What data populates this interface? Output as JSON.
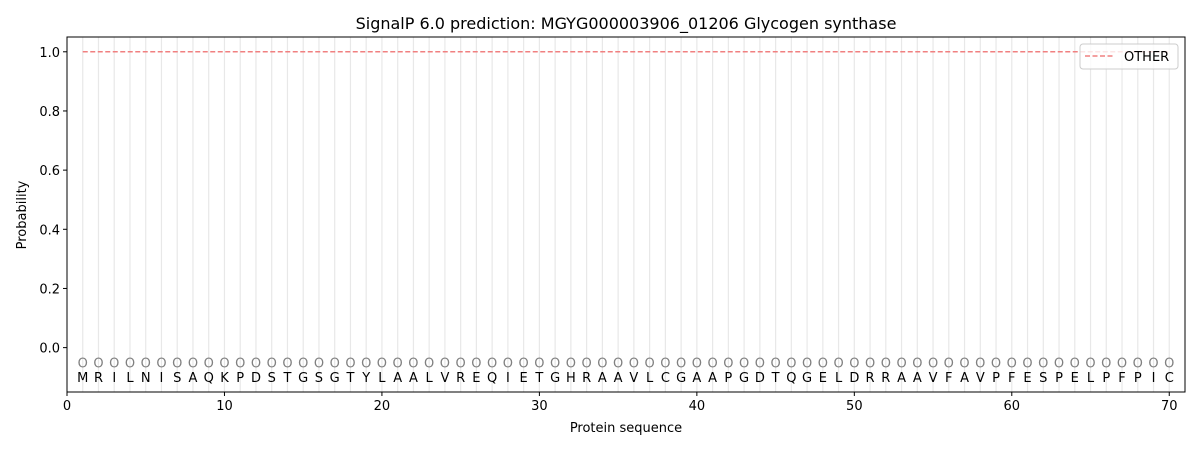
{
  "chart_data": {
    "type": "line",
    "title": "SignalP 6.0 prediction: MGYG000003906_01206 Glycogen synthase",
    "xlabel": "Protein sequence",
    "ylabel": "Probability",
    "xlim": [
      0,
      71
    ],
    "ylim": [
      -0.15,
      1.05
    ],
    "xticks": [
      0,
      10,
      20,
      30,
      40,
      50,
      60,
      70
    ],
    "yticks": [
      0.0,
      0.2,
      0.4,
      0.6,
      0.8,
      1.0
    ],
    "ytick_labels": [
      "0.0",
      "0.2",
      "0.4",
      "0.6",
      "0.8",
      "1.0"
    ],
    "grid": "vertical lines at each residue",
    "legend_placement": "top-right",
    "series": [
      {
        "name": "OTHER",
        "color": "#f08080",
        "style": "dashed",
        "x_start": 1,
        "x_end": 70,
        "value": 1.0
      }
    ],
    "sequence": [
      "M",
      "R",
      "I",
      "L",
      "N",
      "I",
      "S",
      "A",
      "Q",
      "K",
      "P",
      "D",
      "S",
      "T",
      "G",
      "S",
      "G",
      "T",
      "Y",
      "L",
      "A",
      "A",
      "L",
      "V",
      "R",
      "E",
      "Q",
      "I",
      "E",
      "T",
      "G",
      "H",
      "R",
      "A",
      "A",
      "V",
      "L",
      "C",
      "G",
      "A",
      "A",
      "P",
      "G",
      "D",
      "T",
      "Q",
      "G",
      "E",
      "L",
      "D",
      "R",
      "R",
      "A",
      "A",
      "V",
      "F",
      "A",
      "V",
      "P",
      "F",
      "E",
      "S",
      "P",
      "E",
      "L",
      "P",
      "F",
      "P",
      "I",
      "C"
    ],
    "predicted_label": "O",
    "label_color": "#808080"
  }
}
